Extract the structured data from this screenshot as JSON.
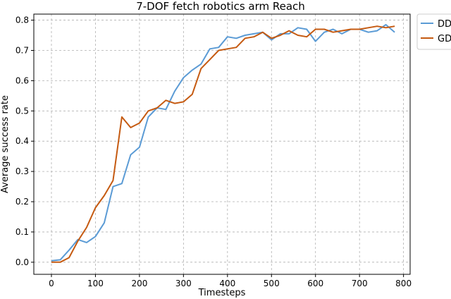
{
  "chart_data": {
    "type": "line",
    "title": "7-DOF fetch robotics arm Reach",
    "xlabel": "Timesteps",
    "ylabel": "Average success rate",
    "xlim": [
      -40,
      815
    ],
    "ylim": [
      -0.04,
      0.82
    ],
    "xticks": [
      0,
      100,
      200,
      300,
      400,
      500,
      600,
      700,
      800
    ],
    "yticks": [
      0.0,
      0.1,
      0.2,
      0.3,
      0.4,
      0.5,
      0.6,
      0.7,
      0.8
    ],
    "grid": true,
    "legend_position": "upper right, partially clipped outside plot",
    "x": [
      0,
      20,
      40,
      60,
      80,
      100,
      120,
      140,
      160,
      180,
      200,
      220,
      240,
      260,
      280,
      300,
      320,
      340,
      360,
      380,
      400,
      420,
      440,
      460,
      480,
      500,
      520,
      540,
      560,
      580,
      600,
      620,
      640,
      660,
      680,
      700,
      720,
      740,
      760,
      780
    ],
    "series": [
      {
        "name": "DD",
        "color": "#5b9bd5",
        "values": [
          0.005,
          0.008,
          0.04,
          0.075,
          0.065,
          0.085,
          0.13,
          0.25,
          0.26,
          0.355,
          0.38,
          0.48,
          0.51,
          0.505,
          0.565,
          0.61,
          0.635,
          0.655,
          0.705,
          0.71,
          0.745,
          0.74,
          0.75,
          0.755,
          0.76,
          0.735,
          0.755,
          0.755,
          0.775,
          0.77,
          0.73,
          0.76,
          0.77,
          0.755,
          0.77,
          0.77,
          0.76,
          0.765,
          0.785,
          0.76
        ]
      },
      {
        "name": "GD",
        "color": "#c55a11",
        "values": [
          0.0,
          0.0,
          0.015,
          0.07,
          0.115,
          0.18,
          0.22,
          0.27,
          0.48,
          0.445,
          0.46,
          0.5,
          0.51,
          0.535,
          0.525,
          0.53,
          0.555,
          0.64,
          0.67,
          0.7,
          0.705,
          0.71,
          0.74,
          0.745,
          0.76,
          0.74,
          0.75,
          0.765,
          0.75,
          0.745,
          0.77,
          0.77,
          0.76,
          0.765,
          0.77,
          0.77,
          0.775,
          0.78,
          0.775,
          0.78
        ]
      }
    ]
  }
}
